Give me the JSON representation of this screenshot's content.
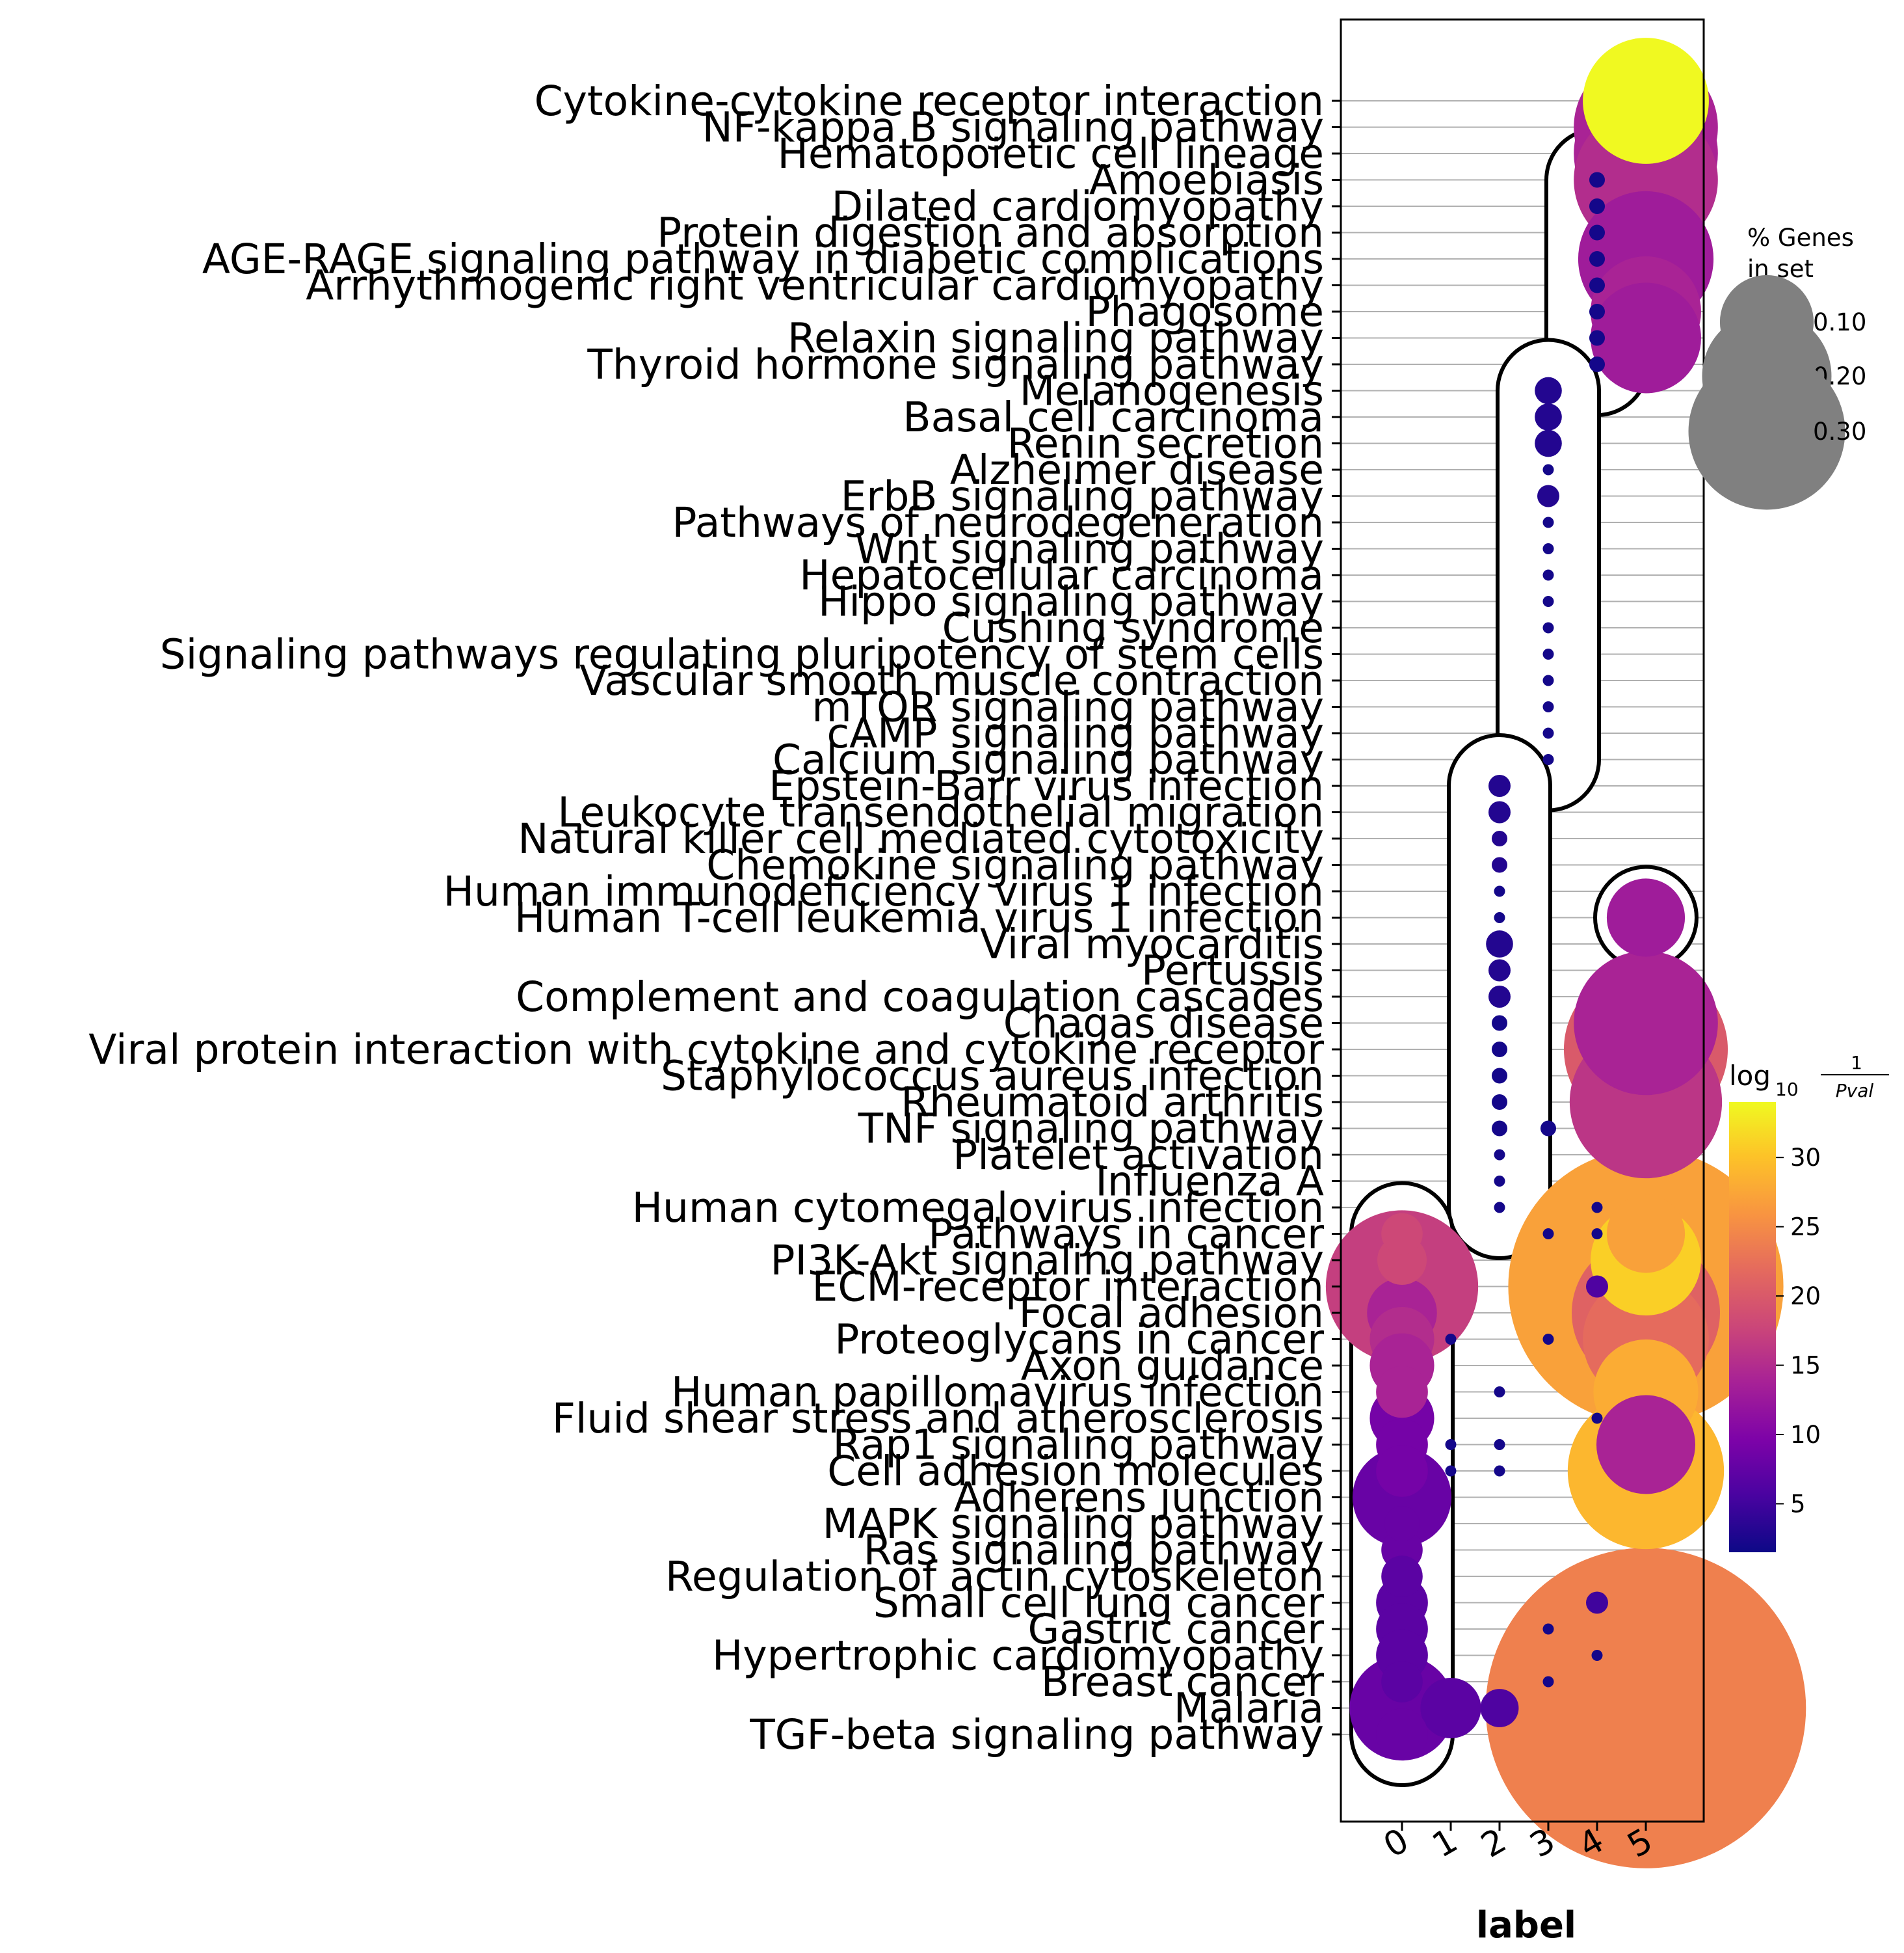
{
  "chart_data": {
    "type": "scatter",
    "xlabel": "label",
    "x_categories": [
      "0",
      "1",
      "2",
      "3",
      "4",
      "5"
    ],
    "pathways": [
      "Cytokine-cytokine receptor interaction",
      "NF-kappa B signaling pathway",
      "Hematopoietic cell lineage",
      "Amoebiasis",
      "Dilated cardiomyopathy",
      "Protein digestion and absorption",
      "AGE-RAGE signaling pathway in diabetic complications",
      "Arrhythmogenic right ventricular cardiomyopathy",
      "Phagosome",
      "Relaxin signaling pathway",
      "Thyroid hormone signaling pathway",
      "Melanogenesis",
      "Basal cell carcinoma",
      "Renin secretion",
      "Alzheimer disease",
      "ErbB signaling pathway",
      "Pathways of neurodegeneration",
      "Wnt signaling pathway",
      "Hepatocellular carcinoma",
      "Hippo signaling pathway",
      "Cushing syndrome",
      "Signaling pathways regulating pluripotency of stem cells",
      "Vascular smooth muscle contraction",
      "mTOR signaling pathway",
      "cAMP signaling pathway",
      "Calcium signaling pathway",
      "Epstein-Barr virus infection",
      "Leukocyte transendothelial migration",
      "Natural killer cell mediated cytotoxicity",
      "Chemokine signaling pathway",
      "Human immunodeficiency virus 1 infection",
      "Human T-cell leukemia virus 1 infection",
      "Viral myocarditis",
      "Pertussis",
      "Complement and coagulation cascades",
      "Chagas disease",
      "Viral protein interaction with cytokine and cytokine receptor",
      "Staphylococcus aureus infection",
      "Rheumatoid arthritis",
      "TNF signaling pathway",
      "Platelet activation",
      "Influenza A",
      "Human cytomegalovirus infection",
      "Pathways in cancer",
      "PI3K-Akt signaling pathway",
      "ECM-receptor interaction",
      "Focal adhesion",
      "Proteoglycans in cancer",
      "Axon guidance",
      "Human papillomavirus infection",
      "Fluid shear stress and atherosclerosis",
      "Rap1 signaling pathway",
      "Cell adhesion molecules",
      "Adherens junction",
      "MAPK signaling pathway",
      "Ras signaling pathway",
      "Regulation of actin cytoskeleton",
      "Small cell lung cancer",
      "Gastric cancer",
      "Hypertrophic cardiomyopathy",
      "Breast cancer",
      "Malaria",
      "TGF-beta signaling pathway"
    ],
    "size_legend": {
      "title": "% Genes\nin set",
      "labels": [
        "0.10",
        "0.20",
        "0.30"
      ],
      "values": [
        0.1,
        0.2,
        0.3
      ]
    },
    "color_legend": {
      "title_main": "log",
      "title_sub": "10",
      "title_num": "1",
      "title_den": "Pval",
      "ticks": [
        "5",
        "10",
        "15",
        "20",
        "25",
        "30"
      ],
      "tick_values": [
        5,
        10,
        15,
        20,
        25,
        30
      ],
      "range": [
        1.5,
        34
      ],
      "colormap": "plasma"
    },
    "points": [
      {
        "label": "5",
        "pathway": "Cytokine-cytokine receptor interaction",
        "pct": 0.065,
        "logp": 34
      },
      {
        "label": "5",
        "pathway": "NF-kappa B signaling pathway",
        "pct": 0.085,
        "logp": 14
      },
      {
        "label": "5",
        "pathway": "Hematopoietic cell lineage",
        "pct": 0.085,
        "logp": 14
      },
      {
        "label": "4",
        "pathway": "Amoebiasis",
        "pct": 0.001,
        "logp": 2
      },
      {
        "label": "5",
        "pathway": "Amoebiasis",
        "pct": 0.085,
        "logp": 15
      },
      {
        "label": "4",
        "pathway": "Dilated cardiomyopathy",
        "pct": 0.001,
        "logp": 2
      },
      {
        "label": "4",
        "pathway": "Protein digestion and absorption",
        "pct": 0.001,
        "logp": 2
      },
      {
        "label": "4",
        "pathway": "AGE-RAGE signaling pathway in diabetic complications",
        "pct": 0.001,
        "logp": 2
      },
      {
        "label": "5",
        "pathway": "AGE-RAGE signaling pathway in diabetic complications",
        "pct": 0.075,
        "logp": 13
      },
      {
        "label": "4",
        "pathway": "Arrhythmogenic right ventricular cardiomyopathy",
        "pct": 0.001,
        "logp": 2
      },
      {
        "label": "4",
        "pathway": "Phagosome",
        "pct": 0.001,
        "logp": 2
      },
      {
        "label": "5",
        "pathway": "Phagosome",
        "pct": 0.05,
        "logp": 14
      },
      {
        "label": "4",
        "pathway": "Relaxin signaling pathway",
        "pct": 0.001,
        "logp": 2
      },
      {
        "label": "5",
        "pathway": "Relaxin signaling pathway",
        "pct": 0.05,
        "logp": 13
      },
      {
        "label": "4",
        "pathway": "Thyroid hormone signaling pathway",
        "pct": 0.001,
        "logp": 2
      },
      {
        "label": "3",
        "pathway": "Melanogenesis",
        "pct": 0.003,
        "logp": 3
      },
      {
        "label": "3",
        "pathway": "Basal cell carcinoma",
        "pct": 0.003,
        "logp": 3
      },
      {
        "label": "3",
        "pathway": "Renin secretion",
        "pct": 0.003,
        "logp": 3
      },
      {
        "label": "3",
        "pathway": "Alzheimer disease",
        "pct": 0.0005,
        "logp": 2
      },
      {
        "label": "3",
        "pathway": "ErbB signaling pathway",
        "pct": 0.002,
        "logp": 3
      },
      {
        "label": "3",
        "pathway": "Pathways of neurodegeneration",
        "pct": 0.0005,
        "logp": 2
      },
      {
        "label": "3",
        "pathway": "Wnt signaling pathway",
        "pct": 0.0005,
        "logp": 2
      },
      {
        "label": "3",
        "pathway": "Hepatocellular carcinoma",
        "pct": 0.0005,
        "logp": 2
      },
      {
        "label": "3",
        "pathway": "Hippo signaling pathway",
        "pct": 0.0005,
        "logp": 2
      },
      {
        "label": "3",
        "pathway": "Cushing syndrome",
        "pct": 0.0005,
        "logp": 2
      },
      {
        "label": "3",
        "pathway": "Signaling pathways regulating pluripotency of stem cells",
        "pct": 0.0005,
        "logp": 2
      },
      {
        "label": "3",
        "pathway": "Vascular smooth muscle contraction",
        "pct": 0.0005,
        "logp": 2
      },
      {
        "label": "3",
        "pathway": "mTOR signaling pathway",
        "pct": 0.0005,
        "logp": 2
      },
      {
        "label": "3",
        "pathway": "cAMP signaling pathway",
        "pct": 0.0005,
        "logp": 2
      },
      {
        "label": "3",
        "pathway": "Calcium signaling pathway",
        "pct": 0.0005,
        "logp": 2
      },
      {
        "label": "2",
        "pathway": "Epstein-Barr virus infection",
        "pct": 0.002,
        "logp": 3
      },
      {
        "label": "2",
        "pathway": "Leukocyte transendothelial migration",
        "pct": 0.002,
        "logp": 3
      },
      {
        "label": "2",
        "pathway": "Natural killer cell mediated cytotoxicity",
        "pct": 0.001,
        "logp": 3
      },
      {
        "label": "2",
        "pathway": "Chemokine signaling pathway",
        "pct": 0.001,
        "logp": 3
      },
      {
        "label": "2",
        "pathway": "Human immunodeficiency virus 1 infection",
        "pct": 0.0005,
        "logp": 2
      },
      {
        "label": "2",
        "pathway": "Human T-cell leukemia virus 1 infection",
        "pct": 0.0005,
        "logp": 2
      },
      {
        "label": "5",
        "pathway": "Human T-cell leukemia virus 1 infection",
        "pct": 0.025,
        "logp": 13
      },
      {
        "label": "2",
        "pathway": "Viral myocarditis",
        "pct": 0.003,
        "logp": 3
      },
      {
        "label": "2",
        "pathway": "Pertussis",
        "pct": 0.002,
        "logp": 3
      },
      {
        "label": "2",
        "pathway": "Complement and coagulation cascades",
        "pct": 0.002,
        "logp": 3
      },
      {
        "label": "2",
        "pathway": "Chagas disease",
        "pct": 0.001,
        "logp": 2
      },
      {
        "label": "5",
        "pathway": "Chagas disease",
        "pct": 0.085,
        "logp": 14
      },
      {
        "label": "2",
        "pathway": "Viral protein interaction with cytokine and cytokine receptor",
        "pct": 0.001,
        "logp": 2
      },
      {
        "label": "5",
        "pathway": "Viral protein interaction with cytokine and cytokine receptor",
        "pct": 0.11,
        "logp": 20
      },
      {
        "label": "2",
        "pathway": "Staphylococcus aureus infection",
        "pct": 0.001,
        "logp": 2
      },
      {
        "label": "2",
        "pathway": "Rheumatoid arthritis",
        "pct": 0.001,
        "logp": 2
      },
      {
        "label": "5",
        "pathway": "Rheumatoid arthritis",
        "pct": 0.095,
        "logp": 16
      },
      {
        "label": "2",
        "pathway": "TNF signaling pathway",
        "pct": 0.001,
        "logp": 2
      },
      {
        "label": "3",
        "pathway": "TNF signaling pathway",
        "pct": 0.001,
        "logp": 2
      },
      {
        "label": "2",
        "pathway": "Platelet activation",
        "pct": 0.0005,
        "logp": 2
      },
      {
        "label": "2",
        "pathway": "Influenza A",
        "pct": 0.0005,
        "logp": 2
      },
      {
        "label": "2",
        "pathway": "Human cytomegalovirus infection",
        "pct": 0.0005,
        "logp": 2
      },
      {
        "label": "4",
        "pathway": "Human cytomegalovirus infection",
        "pct": 0.0005,
        "logp": 2
      },
      {
        "label": "0",
        "pathway": "Pathways in cancer",
        "pct": 0.007,
        "logp": 18
      },
      {
        "label": "3",
        "pathway": "Pathways in cancer",
        "pct": 0.0005,
        "logp": 2
      },
      {
        "label": "4",
        "pathway": "Pathways in cancer",
        "pct": 0.0005,
        "logp": 2
      },
      {
        "label": "5",
        "pathway": "Pathways in cancer",
        "pct": 0.025,
        "logp": 27
      },
      {
        "label": "0",
        "pathway": "PI3K-Akt signaling pathway",
        "pct": 0.01,
        "logp": 18
      },
      {
        "label": "5",
        "pathway": "PI3K-Akt signaling pathway",
        "pct": 0.05,
        "logp": 31
      },
      {
        "label": "0",
        "pathway": "ECM-receptor interaction",
        "pct": 0.095,
        "logp": 17
      },
      {
        "label": "4",
        "pathway": "ECM-receptor interaction",
        "pct": 0.002,
        "logp": 6
      },
      {
        "label": "5",
        "pathway": "ECM-receptor interaction",
        "pct": 0.31,
        "logp": 27
      },
      {
        "label": "0",
        "pathway": "Focal adhesion",
        "pct": 0.02,
        "logp": 14
      },
      {
        "label": "5",
        "pathway": "Focal adhesion",
        "pct": 0.09,
        "logp": 21
      },
      {
        "label": "0",
        "pathway": "Proteoglycans in cancer",
        "pct": 0.017,
        "logp": 15
      },
      {
        "label": "1",
        "pathway": "Proteoglycans in cancer",
        "pct": 0.0005,
        "logp": 2
      },
      {
        "label": "3",
        "pathway": "Proteoglycans in cancer",
        "pct": 0.0005,
        "logp": 2
      },
      {
        "label": "5",
        "pathway": "Proteoglycans in cancer",
        "pct": 0.065,
        "logp": 22
      },
      {
        "label": "0",
        "pathway": "Axon guidance",
        "pct": 0.017,
        "logp": 14
      },
      {
        "label": "0",
        "pathway": "Human papillomavirus infection",
        "pct": 0.011,
        "logp": 14
      },
      {
        "label": "2",
        "pathway": "Human papillomavirus infection",
        "pct": 0.0005,
        "logp": 2
      },
      {
        "label": "5",
        "pathway": "Human papillomavirus infection",
        "pct": 0.045,
        "logp": 28
      },
      {
        "label": "0",
        "pathway": "Fluid shear stress and atherosclerosis",
        "pct": 0.017,
        "logp": 9
      },
      {
        "label": "4",
        "pathway": "Fluid shear stress and atherosclerosis",
        "pct": 0.0005,
        "logp": 2
      },
      {
        "label": "0",
        "pathway": "Rap1 signaling pathway",
        "pct": 0.011,
        "logp": 9
      },
      {
        "label": "1",
        "pathway": "Rap1 signaling pathway",
        "pct": 0.0005,
        "logp": 2
      },
      {
        "label": "2",
        "pathway": "Rap1 signaling pathway",
        "pct": 0.0005,
        "logp": 2
      },
      {
        "label": "5",
        "pathway": "Rap1 signaling pathway",
        "pct": 0.04,
        "logp": 14
      },
      {
        "label": "0",
        "pathway": "Cell adhesion molecules",
        "pct": 0.011,
        "logp": 9
      },
      {
        "label": "1",
        "pathway": "Cell adhesion molecules",
        "pct": 0.0005,
        "logp": 2
      },
      {
        "label": "2",
        "pathway": "Cell adhesion molecules",
        "pct": 0.0005,
        "logp": 2
      },
      {
        "label": "5",
        "pathway": "Cell adhesion molecules",
        "pct": 0.1,
        "logp": 29
      },
      {
        "label": "0",
        "pathway": "Adherens junction",
        "pct": 0.04,
        "logp": 8
      },
      {
        "label": "0",
        "pathway": "MAPK signaling pathway",
        "pct": 0.005,
        "logp": 8
      },
      {
        "label": "0",
        "pathway": "Ras signaling pathway",
        "pct": 0.007,
        "logp": 8
      },
      {
        "label": "0",
        "pathway": "Regulation of actin cytoskeleton",
        "pct": 0.007,
        "logp": 7
      },
      {
        "label": "0",
        "pathway": "Small cell lung cancer",
        "pct": 0.011,
        "logp": 7
      },
      {
        "label": "4",
        "pathway": "Small cell lung cancer",
        "pct": 0.002,
        "logp": 5
      },
      {
        "label": "0",
        "pathway": "Gastric cancer",
        "pct": 0.011,
        "logp": 7
      },
      {
        "label": "3",
        "pathway": "Gastric cancer",
        "pct": 0.0005,
        "logp": 2
      },
      {
        "label": "0",
        "pathway": "Hypertrophic cardiomyopathy",
        "pct": 0.011,
        "logp": 7
      },
      {
        "label": "4",
        "pathway": "Hypertrophic cardiomyopathy",
        "pct": 0.0005,
        "logp": 2
      },
      {
        "label": "0",
        "pathway": "Breast cancer",
        "pct": 0.007,
        "logp": 7
      },
      {
        "label": "3",
        "pathway": "Breast cancer",
        "pct": 0.0005,
        "logp": 2
      },
      {
        "label": "0",
        "pathway": "Malaria",
        "pct": 0.045,
        "logp": 8
      },
      {
        "label": "1",
        "pathway": "Malaria",
        "pct": 0.015,
        "logp": 7
      },
      {
        "label": "2",
        "pathway": "Malaria",
        "pct": 0.006,
        "logp": 6
      },
      {
        "label": "5",
        "pathway": "Malaria",
        "pct": 0.42,
        "logp": 24
      },
      {
        "label": "0",
        "pathway": "TGF-beta signaling pathway",
        "pct": 0.011,
        "logp": 8
      }
    ],
    "cluster_outlines": [
      {
        "label": "5",
        "from": "Cytokine-cytokine receptor interaction",
        "to": "Relaxin signaling pathway"
      },
      {
        "label": "4",
        "from": "Amoebiasis",
        "to": "Thyroid hormone signaling pathway"
      },
      {
        "label": "3",
        "from": "Melanogenesis",
        "to": "Calcium signaling pathway"
      },
      {
        "label": "2",
        "from": "Epstein-Barr virus infection",
        "to": "Human cytomegalovirus infection"
      },
      {
        "label": "5",
        "from": "Human T-cell leukemia virus 1 infection",
        "to": "Human T-cell leukemia virus 1 infection"
      },
      {
        "label": "5",
        "from": "Chagas disease",
        "to": "Rheumatoid arthritis"
      },
      {
        "label": "0",
        "from": "Pathways in cancer",
        "to": "TGF-beta signaling pathway"
      },
      {
        "label": "5",
        "from": "Pathways in cancer",
        "to": "Cell adhesion molecules"
      },
      {
        "label": "5",
        "from": "Malaria",
        "to": "Malaria"
      }
    ],
    "grid": "horizontal"
  }
}
